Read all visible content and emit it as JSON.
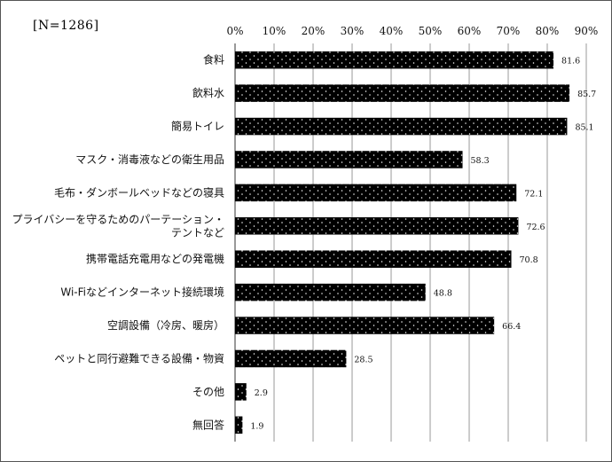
{
  "sample_label": "[N=1286]",
  "chart_data": {
    "type": "bar",
    "orientation": "horizontal",
    "categories": [
      [
        "食料"
      ],
      [
        "飲料水"
      ],
      [
        "簡易トイレ"
      ],
      [
        "マスク・消毒液などの衛生用品"
      ],
      [
        "毛布・ダンボールベッドなどの寝具"
      ],
      [
        "プライバシーを守るためのパーテーション・",
        "テントなど"
      ],
      [
        "携帯電話充電用などの発電機"
      ],
      [
        "Wi-Fiなどインターネット接続環境"
      ],
      [
        "空調設備（冷房、暖房）"
      ],
      [
        "ペットと同行避難できる設備・物資"
      ],
      [
        "その他"
      ],
      [
        "無回答"
      ]
    ],
    "values": [
      81.6,
      85.7,
      85.1,
      58.3,
      72.1,
      72.6,
      70.8,
      48.8,
      66.4,
      28.5,
      2.9,
      1.9
    ],
    "value_labels": [
      "81.6",
      "85.7",
      "85.1",
      "58.3",
      "72.1",
      "72.6",
      "70.8",
      "48.8",
      "66.4",
      "28.5",
      "2.9",
      "1.9"
    ],
    "xticks": [
      "0%",
      "10%",
      "20%",
      "30%",
      "40%",
      "50%",
      "60%",
      "70%",
      "80%",
      "90%"
    ],
    "xlim": [
      0,
      90
    ],
    "grid": "vertical",
    "bar_fill": "#000000",
    "dot_color": "#ffffff",
    "grid_color": "#9a9a9a"
  }
}
